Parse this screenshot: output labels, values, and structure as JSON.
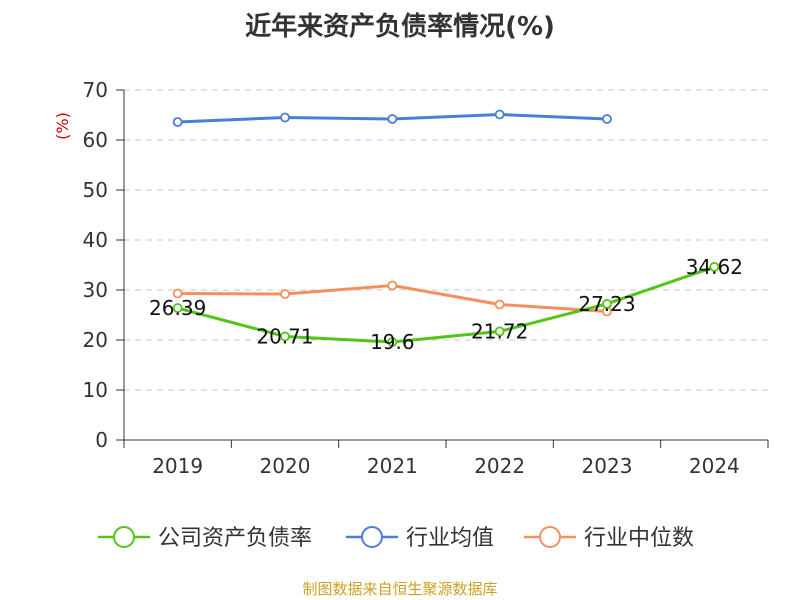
{
  "title": "近年来资产负债率情况(%)",
  "source": "制图数据来自恒生聚源数据库",
  "chart_data": {
    "type": "line",
    "title": "近年来资产负债率情况(%)",
    "ylabel": "(%)",
    "xlabel": "",
    "categories": [
      "2019",
      "2020",
      "2021",
      "2022",
      "2023",
      "2024"
    ],
    "ylim": [
      0,
      70
    ],
    "yticks": [
      0,
      10,
      20,
      30,
      40,
      50,
      60,
      70
    ],
    "grid": true,
    "legend_position": "bottom",
    "series": [
      {
        "name": "公司资产负债率",
        "color": "#52c41a",
        "values": [
          26.39,
          20.71,
          19.6,
          21.72,
          27.23,
          34.62
        ],
        "labels": [
          "26.39",
          "20.71",
          "19.6",
          "21.72",
          "27.23",
          "34.62"
        ],
        "show_labels": true
      },
      {
        "name": "行业均值",
        "color": "#4a7fd6",
        "values": [
          63.6,
          64.5,
          64.2,
          65.1,
          64.2,
          null
        ],
        "show_labels": false
      },
      {
        "name": "行业中位数",
        "color": "#f39060",
        "values": [
          29.3,
          29.2,
          30.9,
          27.1,
          25.7,
          null
        ],
        "show_labels": false
      }
    ]
  }
}
